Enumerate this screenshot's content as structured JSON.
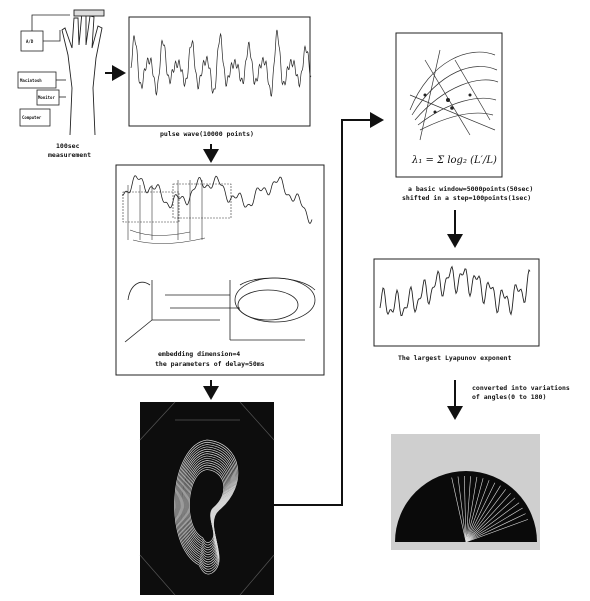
{
  "measurement": {
    "caption_line1": "100sec",
    "caption_line2": "measurement",
    "box_labels": [
      "A/D",
      "Macintosh",
      "Monitor",
      "Computer"
    ]
  },
  "pulse_wave": {
    "caption": "pulse wave(10000 points)"
  },
  "embedding": {
    "caption_line1": "embedding dimension=4",
    "caption_line2": "the parameters of delay=50ms"
  },
  "lyapunov_method": {
    "caption_line1": "a basic window=5000points(50sec)",
    "caption_line2": "shifted in a step=100points(1sec)"
  },
  "lyapunov_plot": {
    "caption": "The largest Lyapunov exponent"
  },
  "conversion": {
    "caption_line1": "converted into variations",
    "caption_line2": "of angles(0 to 180)"
  }
}
